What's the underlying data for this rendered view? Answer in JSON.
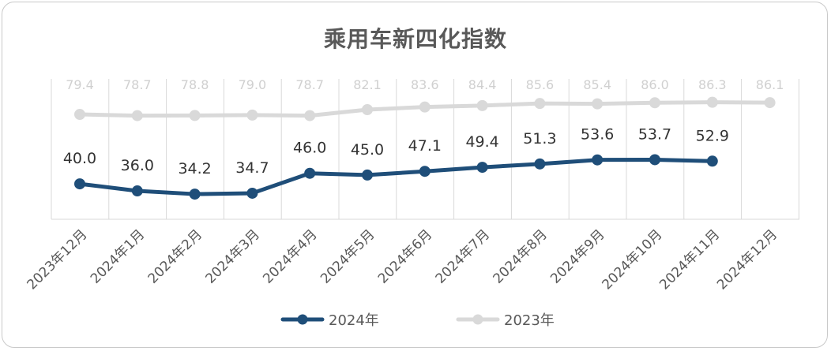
{
  "chart_data": {
    "type": "line",
    "title": "乘用车新四化指数",
    "categories": [
      "2023年12月",
      "2024年1月",
      "2024年2月",
      "2024年3月",
      "2024年4月",
      "2024年5月",
      "2024年6月",
      "2024年7月",
      "2024年8月",
      "2024年9月",
      "2024年10月",
      "2024年11月",
      "2024年12月"
    ],
    "series": [
      {
        "name": "2024年",
        "color": "#1f4e79",
        "values": [
          40.0,
          36.0,
          34.2,
          34.7,
          46.0,
          45.0,
          47.1,
          49.4,
          51.3,
          53.6,
          53.7,
          52.9,
          null
        ]
      },
      {
        "name": "2023年",
        "color": "#d9d9d9",
        "values": [
          79.4,
          78.7,
          78.8,
          79.0,
          78.7,
          82.1,
          83.6,
          84.4,
          85.6,
          85.4,
          86.0,
          86.3,
          86.1
        ]
      }
    ],
    "legend_position": "bottom",
    "grid": "vertical",
    "ylim": [
      0,
      95
    ]
  }
}
